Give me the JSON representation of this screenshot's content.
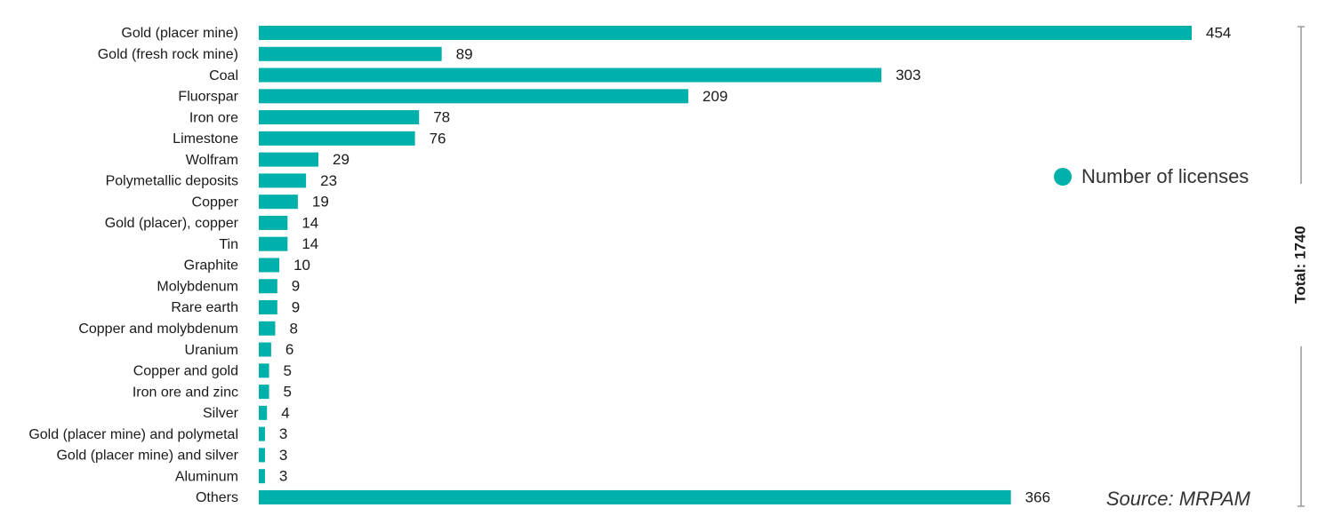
{
  "chart_data": {
    "type": "bar",
    "orientation": "horizontal",
    "categories": [
      "Gold (placer mine)",
      "Gold (fresh rock mine)",
      "Coal",
      "Fluorspar",
      "Iron ore",
      "Limestone",
      "Wolfram",
      "Polymetallic deposits",
      "Copper",
      "Gold (placer), copper",
      "Tin",
      "Graphite",
      "Molybdenum",
      "Rare earth",
      "Copper and molybdenum",
      "Uranium",
      "Copper and gold",
      "Iron ore and zinc",
      "Silver",
      "Gold (placer mine) and polymetal",
      "Gold (placer mine) and silver",
      "Aluminum",
      "Others"
    ],
    "series": [
      {
        "name": "Number of licenses",
        "color": "#00b0aa",
        "values": [
          454,
          89,
          303,
          209,
          78,
          76,
          29,
          23,
          19,
          14,
          14,
          10,
          9,
          9,
          8,
          6,
          5,
          5,
          4,
          3,
          3,
          3,
          366
        ]
      }
    ],
    "total_label": "Total: 1740",
    "source": "Source: MRPAM"
  }
}
